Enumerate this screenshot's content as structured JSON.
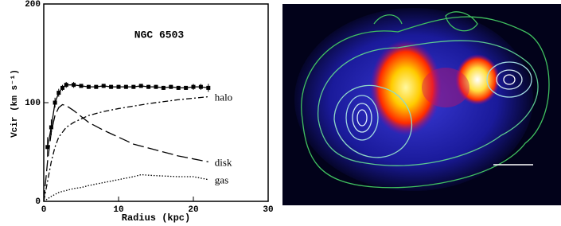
{
  "chart_data": {
    "type": "line",
    "title": "NGC 6503",
    "xlabel": "Radius (kpc)",
    "ylabel": "Vcir (km s⁻¹)",
    "xlim": [
      0,
      30
    ],
    "xticks": [
      0,
      10,
      20,
      30
    ],
    "ylim": [
      0,
      200
    ],
    "yticks": [
      0,
      100,
      200
    ],
    "series": [
      {
        "color": "#000000",
        "marker": "square",
        "line_style": "solid",
        "x": [
          0.5,
          1,
          1.5,
          2,
          2.5,
          3,
          4,
          5,
          6,
          7,
          8,
          9,
          10,
          11,
          12,
          13,
          14,
          15,
          16,
          17,
          18,
          19,
          20,
          21,
          22
        ],
        "values": [
          55,
          75,
          100,
          110,
          115,
          118,
          118,
          117,
          116,
          116,
          117,
          116,
          116,
          116,
          116,
          117,
          116,
          116,
          115,
          116,
          115,
          115,
          116,
          116,
          115
        ],
        "errors": [
          10,
          8,
          5,
          4,
          3,
          3,
          3,
          2,
          2,
          2,
          2,
          2,
          2,
          2,
          2,
          2,
          2,
          2,
          2,
          2,
          2,
          2,
          3,
          3,
          4
        ]
      },
      {
        "name": "halo",
        "color": "#000000",
        "line_style": "dash-dot",
        "x": [
          0,
          0.5,
          1,
          1.5,
          2,
          3,
          4,
          6,
          8,
          10,
          14,
          18,
          22
        ],
        "values": [
          0,
          20,
          40,
          55,
          65,
          75,
          80,
          87,
          91,
          94,
          99,
          103,
          106
        ]
      },
      {
        "name": "disk",
        "color": "#000000",
        "line_style": "long-dash",
        "x": [
          0,
          0.5,
          1,
          1.5,
          2,
          2.5,
          3,
          4,
          5,
          6,
          8,
          10,
          12,
          15,
          18,
          20,
          22
        ],
        "values": [
          0,
          40,
          70,
          87,
          95,
          98,
          97,
          92,
          86,
          80,
          72,
          65,
          58,
          52,
          46,
          43,
          40
        ]
      },
      {
        "name": "gas",
        "color": "#000000",
        "line_style": "dotted",
        "x": [
          0,
          1,
          2,
          3,
          4,
          5,
          6,
          8,
          10,
          12,
          13,
          15,
          18,
          20,
          22
        ],
        "values": [
          0,
          5,
          9,
          11,
          13,
          14,
          16,
          19,
          22,
          25,
          27,
          26,
          25,
          25,
          22
        ]
      }
    ]
  }
}
